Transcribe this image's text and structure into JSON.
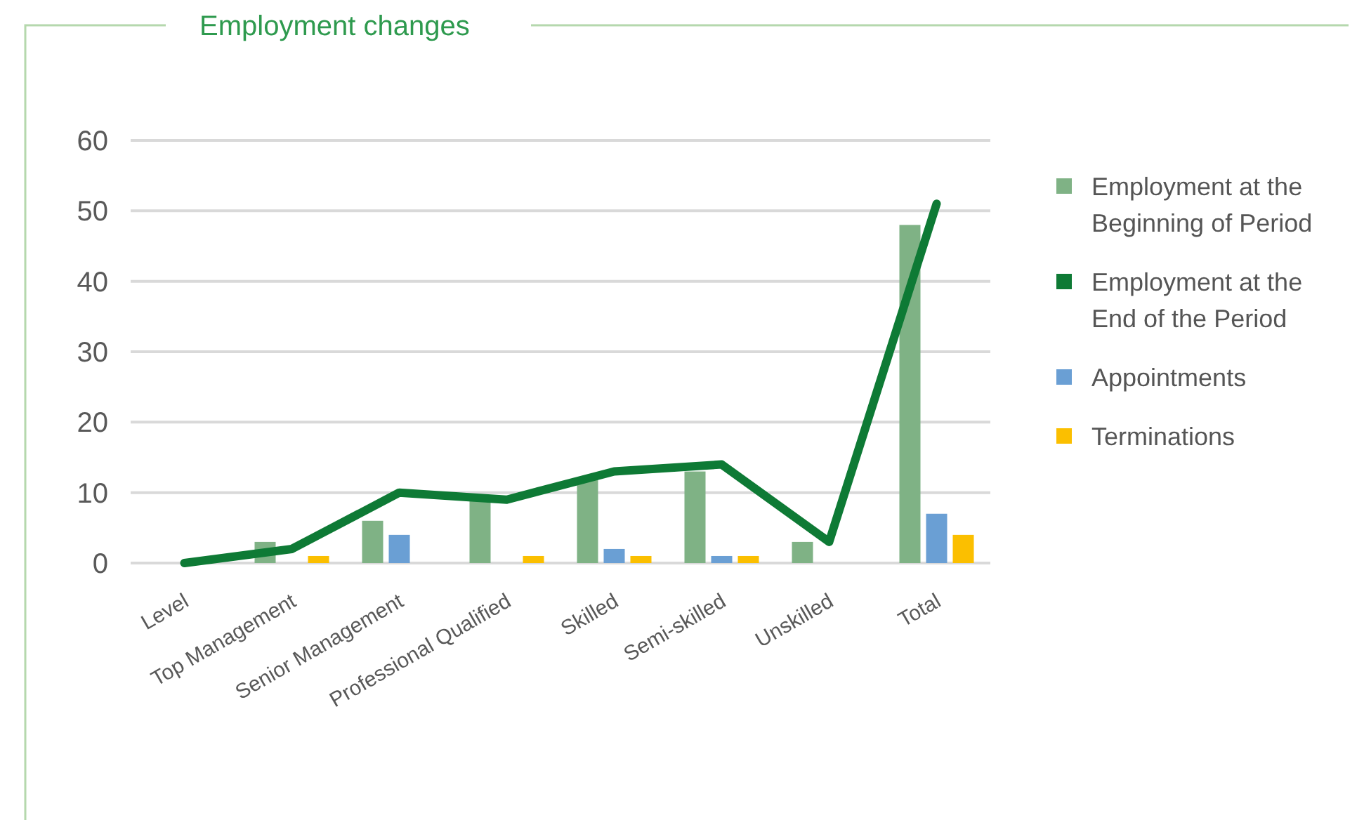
{
  "chart_data": {
    "type": "bar",
    "title": "Employment changes",
    "categories": [
      "Level",
      "Top Management",
      "Senior Management",
      "Professional Qualified",
      "Skilled",
      "Semi-skilled",
      "Unskilled",
      "Total"
    ],
    "series": [
      {
        "name": "Employment at the Beginning of Period",
        "color": "#7fb285",
        "values": [
          null,
          3,
          6,
          9,
          12,
          13,
          3,
          48
        ]
      },
      {
        "name": "Employment at the End of the Period",
        "color": "#0e7a35",
        "type": "line",
        "values": [
          0,
          2,
          10,
          9,
          13,
          14,
          3,
          51
        ]
      },
      {
        "name": "Appointments",
        "color": "#6a9fd4",
        "values": [
          null,
          null,
          4,
          null,
          2,
          1,
          null,
          7
        ]
      },
      {
        "name": "Terminations",
        "color": "#fbbf00",
        "values": [
          null,
          1,
          null,
          1,
          1,
          1,
          null,
          4
        ]
      }
    ],
    "ylim": [
      0,
      60
    ],
    "yticks": [
      0,
      10,
      20,
      30,
      40,
      50,
      60
    ],
    "grid": "y",
    "legend": "right"
  }
}
